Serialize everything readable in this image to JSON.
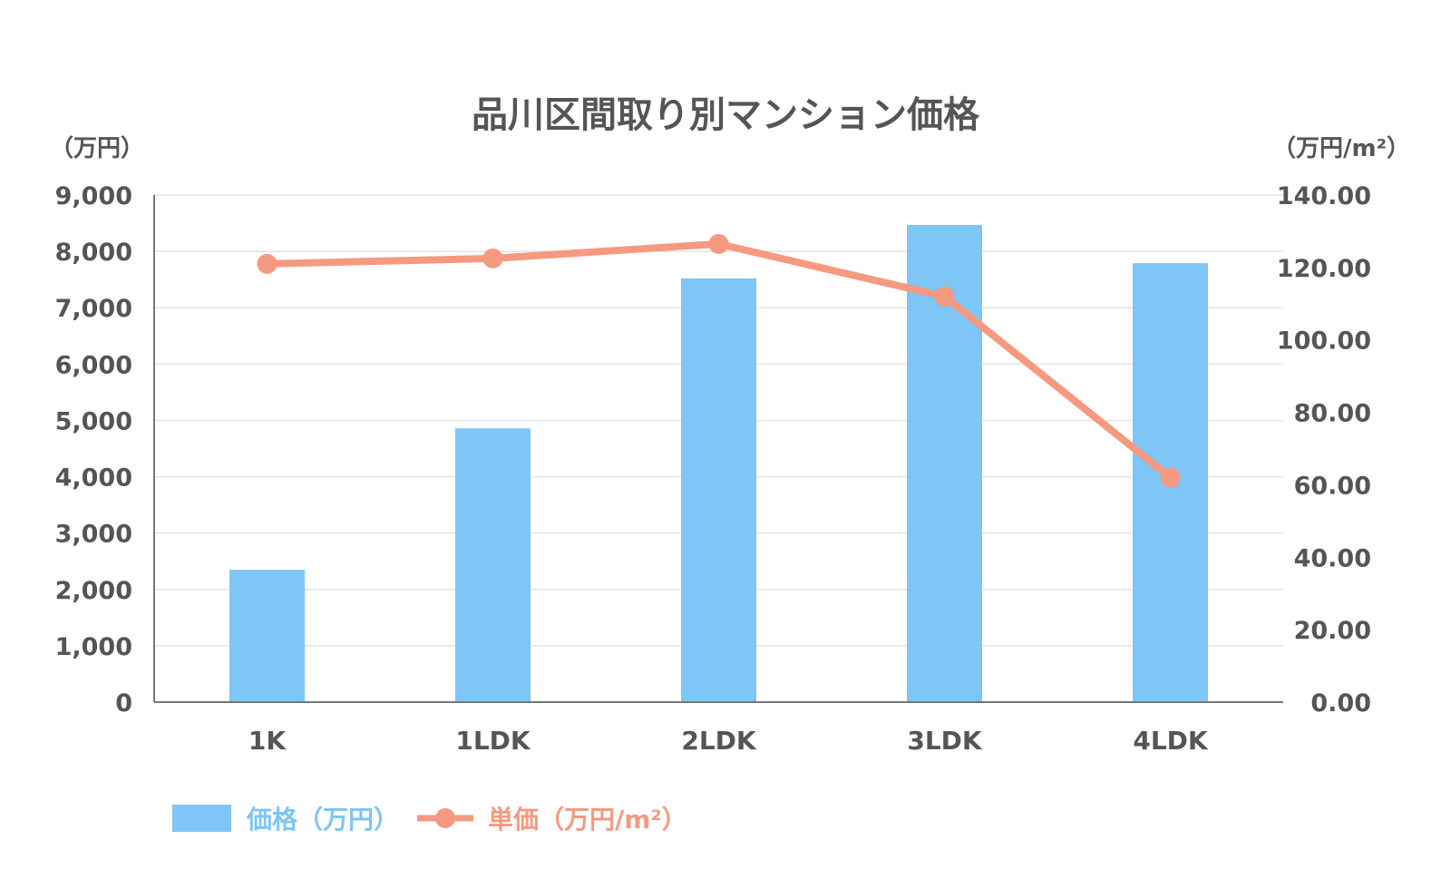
{
  "chart_data": {
    "type": "bar",
    "title": "品川区間取り別マンション価格",
    "y_left_unit": "（万円）",
    "y_right_unit": "（万円/m²）",
    "categories": [
      "1K",
      "1LDK",
      "2LDK",
      "3LDK",
      "4LDK"
    ],
    "y_left_ticks": [
      "0",
      "1,000",
      "2,000",
      "3,000",
      "4,000",
      "5,000",
      "6,000",
      "7,000",
      "8,000",
      "9,000"
    ],
    "y_right_ticks": [
      "0.00",
      "20.00",
      "40.00",
      "60.00",
      "80.00",
      "100.00",
      "120.00",
      "140.00"
    ],
    "ylim_left": [
      0,
      9000
    ],
    "ylim_right": [
      0,
      140
    ],
    "grid": true,
    "legend_position": "bottom-left",
    "series": [
      {
        "name": "価格（万円）",
        "type": "bar",
        "axis": "left",
        "color": "#7dc6f5",
        "values": [
          2350,
          4860,
          7520,
          8470,
          7790
        ]
      },
      {
        "name": "単価（万円/m²）",
        "type": "line",
        "axis": "right",
        "color": "#f59a80",
        "values": [
          121,
          122.5,
          126.5,
          112,
          62
        ]
      }
    ]
  }
}
